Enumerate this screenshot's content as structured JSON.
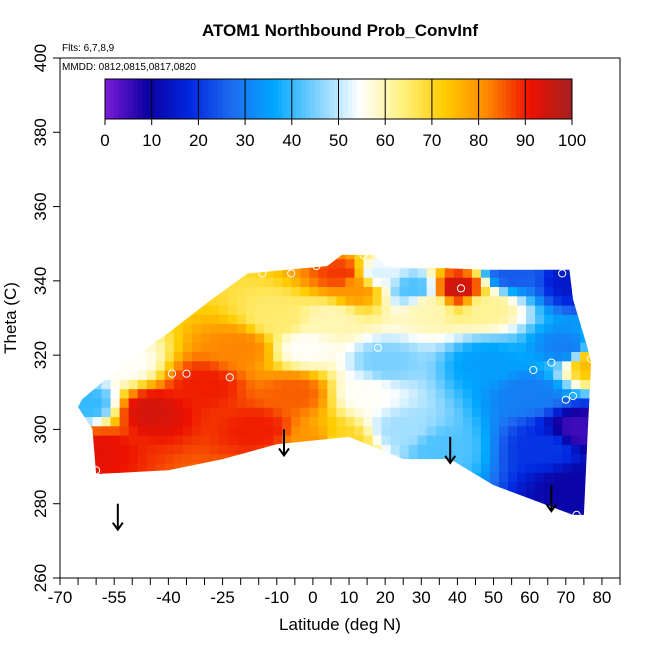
{
  "chart_data": {
    "type": "heatmap",
    "title": "ATOM1 Northbound Prob_ConvInf",
    "annotations": {
      "flights": "Flts: 6,7,8,9",
      "dates": "MMDD: 0812,0815,0817,0820"
    },
    "xlabel": "Latitude (deg N)",
    "ylabel": "Theta (C)",
    "xlim": [
      -70,
      85
    ],
    "ylim": [
      260,
      400
    ],
    "x_tick_labels": [
      "-70",
      "-55",
      "-40",
      "-25",
      "-10",
      "10",
      "20",
      "30",
      "40",
      "50",
      "60",
      "70",
      "80"
    ],
    "x_tick_values": [
      -70,
      -55,
      -40,
      -25,
      -10,
      10,
      20,
      30,
      40,
      50,
      60,
      70,
      80
    ],
    "x_zero_label": "0",
    "y_tick_labels": [
      "260",
      "280",
      "300",
      "320",
      "340",
      "360",
      "380",
      "400"
    ],
    "y_tick_values": [
      260,
      280,
      300,
      320,
      340,
      360,
      380,
      400
    ],
    "colorbar": {
      "range": [
        0,
        100
      ],
      "tick_labels": [
        "0",
        "10",
        "20",
        "30",
        "40",
        "50",
        "60",
        "70",
        "80",
        "90",
        "100"
      ],
      "colors": [
        "#7b1bd9",
        "#0c00a0",
        "#0028e0",
        "#1e6cf0",
        "#00a8ff",
        "#7fd2ff",
        "#ffffff",
        "#fff080",
        "#ffcc00",
        "#ff8800",
        "#ee1100",
        "#a32020"
      ]
    },
    "field_control_points": [
      {
        "lat": -60,
        "theta": 295,
        "value": 92
      },
      {
        "lat": -45,
        "theta": 305,
        "value": 94
      },
      {
        "lat": -30,
        "theta": 312,
        "value": 90
      },
      {
        "lat": -20,
        "theta": 322,
        "value": 82
      },
      {
        "lat": -10,
        "theta": 330,
        "value": 65
      },
      {
        "lat": -15,
        "theta": 300,
        "value": 90
      },
      {
        "lat": -5,
        "theta": 310,
        "value": 85
      },
      {
        "lat": 0,
        "theta": 296,
        "value": 80
      },
      {
        "lat": 8,
        "theta": 296,
        "value": 70
      },
      {
        "lat": -2,
        "theta": 322,
        "value": 55
      },
      {
        "lat": 5,
        "theta": 330,
        "value": 60
      },
      {
        "lat": 8,
        "theta": 342,
        "value": 88
      },
      {
        "lat": 12,
        "theta": 338,
        "value": 80
      },
      {
        "lat": 18,
        "theta": 342,
        "value": 52
      },
      {
        "lat": 15,
        "theta": 310,
        "value": 55
      },
      {
        "lat": 20,
        "theta": 318,
        "value": 45
      },
      {
        "lat": 25,
        "theta": 300,
        "value": 48
      },
      {
        "lat": 28,
        "theta": 338,
        "value": 42
      },
      {
        "lat": 32,
        "theta": 333,
        "value": 60
      },
      {
        "lat": 40,
        "theta": 338,
        "value": 95
      },
      {
        "lat": 48,
        "theta": 333,
        "value": 62
      },
      {
        "lat": 55,
        "theta": 342,
        "value": 25
      },
      {
        "lat": 48,
        "theta": 318,
        "value": 35
      },
      {
        "lat": 60,
        "theta": 310,
        "value": 30
      },
      {
        "lat": 70,
        "theta": 322,
        "value": 30
      },
      {
        "lat": 65,
        "theta": 295,
        "value": 20
      },
      {
        "lat": 72,
        "theta": 285,
        "value": 10
      },
      {
        "lat": 74,
        "theta": 300,
        "value": 5
      },
      {
        "lat": 77,
        "theta": 318,
        "value": 75
      },
      {
        "lat": -63,
        "theta": 307,
        "value": 40
      },
      {
        "lat": -52,
        "theta": 318,
        "value": 55
      },
      {
        "lat": 72,
        "theta": 340,
        "value": 15
      },
      {
        "lat": 35,
        "theta": 295,
        "value": 42
      }
    ],
    "field_boundary": [
      {
        "lat": -64,
        "theta": 308
      },
      {
        "lat": -52,
        "theta": 318
      },
      {
        "lat": -40,
        "theta": 326
      },
      {
        "lat": -28,
        "theta": 335
      },
      {
        "lat": -18,
        "theta": 342
      },
      {
        "lat": 4,
        "theta": 344
      },
      {
        "lat": 8,
        "theta": 347
      },
      {
        "lat": 17,
        "theta": 347
      },
      {
        "lat": 20,
        "theta": 344
      },
      {
        "lat": 48,
        "theta": 343
      },
      {
        "lat": 71,
        "theta": 343
      },
      {
        "lat": 72,
        "theta": 335
      },
      {
        "lat": 76,
        "theta": 322
      },
      {
        "lat": 77,
        "theta": 318
      },
      {
        "lat": 76,
        "theta": 298
      },
      {
        "lat": 75,
        "theta": 277
      },
      {
        "lat": 72,
        "theta": 277
      },
      {
        "lat": 50,
        "theta": 285
      },
      {
        "lat": 38,
        "theta": 292
      },
      {
        "lat": 25,
        "theta": 292
      },
      {
        "lat": 10,
        "theta": 298
      },
      {
        "lat": -10,
        "theta": 296
      },
      {
        "lat": -25,
        "theta": 292
      },
      {
        "lat": -40,
        "theta": 289
      },
      {
        "lat": -60,
        "theta": 288
      },
      {
        "lat": -61,
        "theta": 300
      },
      {
        "lat": -65,
        "theta": 306
      }
    ],
    "observations": [
      {
        "lat": -60,
        "theta": 289
      },
      {
        "lat": -39,
        "theta": 315
      },
      {
        "lat": -35,
        "theta": 315
      },
      {
        "lat": -23,
        "theta": 314
      },
      {
        "lat": -14,
        "theta": 342
      },
      {
        "lat": -6,
        "theta": 342
      },
      {
        "lat": 1,
        "theta": 344
      },
      {
        "lat": 14,
        "theta": 347
      },
      {
        "lat": 18,
        "theta": 322
      },
      {
        "lat": 41,
        "theta": 338
      },
      {
        "lat": 61,
        "theta": 316
      },
      {
        "lat": 66,
        "theta": 318
      },
      {
        "lat": 69,
        "theta": 342
      },
      {
        "lat": 70,
        "theta": 308
      },
      {
        "lat": 72,
        "theta": 309
      },
      {
        "lat": 77,
        "theta": 319
      },
      {
        "lat": 73,
        "theta": 277
      },
      {
        "lat": -66,
        "theta": 309
      }
    ],
    "arrows": [
      {
        "lat": -54,
        "theta_top": 280,
        "theta_bottom": 273
      },
      {
        "lat": -8,
        "theta_top": 300,
        "theta_bottom": 293
      },
      {
        "lat": 38,
        "theta_top": 298,
        "theta_bottom": 291
      },
      {
        "lat": 66,
        "theta_top": 285,
        "theta_bottom": 278
      }
    ],
    "grid": false,
    "legend": "top (colorbar)"
  }
}
